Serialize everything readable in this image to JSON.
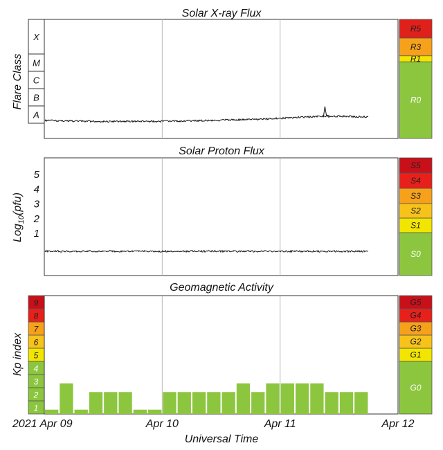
{
  "chart_data": [
    {
      "type": "area",
      "title": "Solar X-ray Flux",
      "ylabel": "Flare Class",
      "class_labels": [
        "A",
        "B",
        "C",
        "M",
        "X"
      ],
      "scale_labels": [
        "R0",
        "R1",
        "R3",
        "R5"
      ],
      "scale_colors": [
        "#8cc63f",
        "#f2e600",
        "#f7a11a",
        "#e0201b"
      ],
      "series_color": "#7cc242",
      "x_range_days": [
        0,
        3
      ],
      "data_end_day": 2.75,
      "x_ticks_days": [
        1,
        2
      ],
      "approx_level": [
        {
          "day": 0.0,
          "level": 0.1
        },
        {
          "day": 0.5,
          "level": 0.06
        },
        {
          "day": 1.0,
          "level": 0.07
        },
        {
          "day": 1.4,
          "level": 0.1
        },
        {
          "day": 1.8,
          "level": 0.14
        },
        {
          "day": 2.1,
          "level": 0.2
        },
        {
          "day": 2.4,
          "level": 0.26
        },
        {
          "day": 2.75,
          "level": 0.23
        }
      ]
    },
    {
      "type": "area",
      "title": "Solar Proton Flux",
      "ylabel": "Log10(pfu)",
      "y_ticks": [
        "1",
        "2",
        "3",
        "4",
        "5"
      ],
      "scale_labels": [
        "S0",
        "S1",
        "S2",
        "S3",
        "S4",
        "S5"
      ],
      "scale_colors": [
        "#8cc63f",
        "#f2e600",
        "#f7c31a",
        "#f7a11a",
        "#e8201b",
        "#c8101a"
      ],
      "series_color": "#7cc242",
      "x_range_days": [
        0,
        3
      ],
      "data_end_day": 2.75,
      "x_ticks_days": [
        1,
        2
      ],
      "approx_level_log10": -0.1
    },
    {
      "type": "bar",
      "title": "Geomagnetic Activity",
      "ylabel": "Kp index",
      "xlabel": "Universal Time",
      "y_ticks": [
        "1",
        "2",
        "3",
        "4",
        "5",
        "6",
        "7",
        "8",
        "9"
      ],
      "kp_colors": [
        "#8cc63f",
        "#8cc63f",
        "#8cc63f",
        "#8cc63f",
        "#f2e600",
        "#f7c31a",
        "#f7a11a",
        "#e8201b",
        "#c8101a"
      ],
      "scale_labels": [
        "G0",
        "G1",
        "G2",
        "G3",
        "G4",
        "G5"
      ],
      "scale_colors": [
        "#8cc63f",
        "#f2e600",
        "#f7c31a",
        "#f7a11a",
        "#e8201b",
        "#c8101a"
      ],
      "bar_color": "#8cc63f",
      "x_tick_labels": [
        "2021 Apr 09",
        "Apr 10",
        "Apr 11",
        "Apr 12"
      ],
      "x_tick_days": [
        0,
        1,
        2,
        3
      ],
      "bar_width_hours": 3,
      "kp_values": [
        0.33,
        2.33,
        0.33,
        1.67,
        1.67,
        1.67,
        0.33,
        0.33,
        1.67,
        1.67,
        1.67,
        1.67,
        1.67,
        2.33,
        1.67,
        2.33,
        2.33,
        2.33,
        2.33,
        1.67,
        1.67,
        1.67
      ]
    }
  ]
}
